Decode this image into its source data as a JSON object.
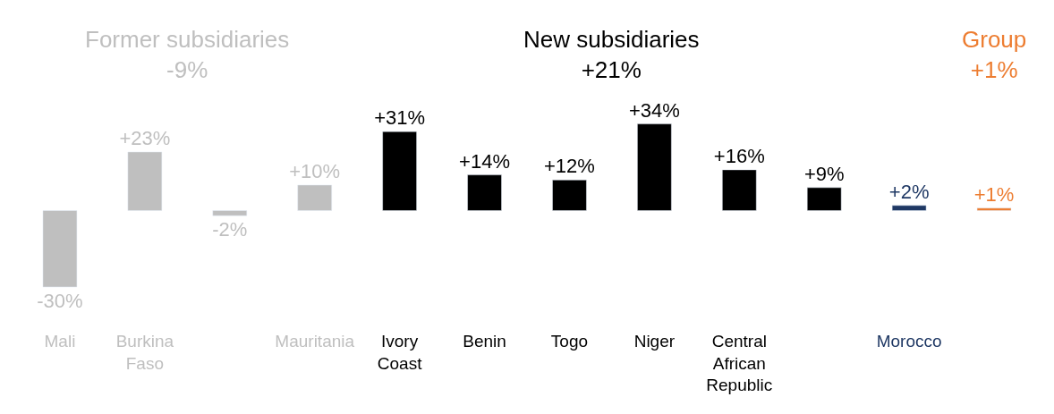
{
  "chart_data": {
    "type": "bar",
    "categories": [
      "Mali",
      "Burkina Faso",
      null,
      "Mauritania",
      "Ivory Coast",
      "Benin",
      "Togo",
      "Niger",
      "Central African Republic",
      null,
      "Morocco",
      null
    ],
    "series": [
      {
        "name": "Former subsidiaries",
        "color": "#bfbfbf",
        "values": [
          -30,
          23,
          -2,
          10,
          null,
          null,
          null,
          null,
          null,
          null,
          null,
          null
        ],
        "value_labels": [
          "-30%",
          "+23%",
          "-2%",
          "+10%",
          null,
          null,
          null,
          null,
          null,
          null,
          null,
          null
        ]
      },
      {
        "name": "New subsidiaries",
        "color": "#000000",
        "values": [
          null,
          null,
          null,
          null,
          31,
          14,
          12,
          34,
          16,
          9,
          null,
          null
        ],
        "value_labels": [
          null,
          null,
          null,
          null,
          "+31%",
          "+14%",
          "+12%",
          "+34%",
          "+16%",
          "+9%",
          null,
          null
        ]
      },
      {
        "color": "#1f3864",
        "values": [
          null,
          null,
          null,
          null,
          null,
          null,
          null,
          null,
          null,
          null,
          2,
          null
        ],
        "value_labels": [
          null,
          null,
          null,
          null,
          null,
          null,
          null,
          null,
          null,
          null,
          "+2%",
          null
        ]
      },
      {
        "name": "Group",
        "color": "#ed7d31",
        "values": [
          null,
          null,
          null,
          null,
          null,
          null,
          null,
          null,
          null,
          null,
          null,
          1
        ],
        "value_labels": [
          null,
          null,
          null,
          null,
          null,
          null,
          null,
          null,
          null,
          null,
          null,
          "+1%"
        ]
      }
    ],
    "annotations": [
      "-9%",
      "+21%",
      "+1%"
    ],
    "legend": false
  }
}
